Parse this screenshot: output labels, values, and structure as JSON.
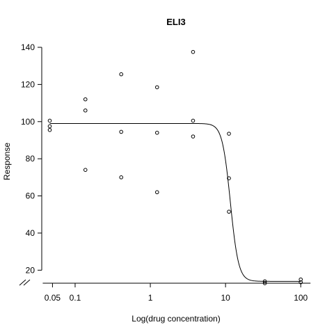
{
  "chart_data": {
    "type": "scatter",
    "title": "ELI3",
    "xlabel": "Log(drug concentration)",
    "ylabel": "Response",
    "x_scale": "log",
    "x_ticks": [
      0.05,
      0.1,
      1,
      10,
      100
    ],
    "x_tick_labels": [
      "0.05",
      "0.1",
      "1",
      "10",
      "100"
    ],
    "y_ticks": [
      20,
      40,
      60,
      80,
      100,
      120,
      140
    ],
    "y_tick_labels": [
      "20",
      "40",
      "60",
      "80",
      "100",
      "120",
      "140"
    ],
    "xlim": [
      0.036,
      140
    ],
    "ylim": [
      13,
      143
    ],
    "grid": false,
    "legend": "none",
    "axis_break": "y-axis break mark at bottom-left",
    "colors": {
      "points": "#000000",
      "curve": "#000000",
      "axes": "#000000"
    },
    "series": [
      {
        "kind": "points",
        "x": [
          0.046,
          0.046,
          0.046,
          0.137,
          0.137,
          0.137,
          0.41,
          0.41,
          0.41,
          1.23,
          1.23,
          1.23,
          3.7,
          3.7,
          3.7,
          11.1,
          11.1,
          11.1,
          33.3,
          33.3,
          100,
          100
        ],
        "y": [
          100.5,
          97.5,
          95.5,
          112,
          106,
          74,
          125.5,
          94.5,
          70,
          118.5,
          94,
          62,
          137.5,
          100.5,
          92,
          93.5,
          69.5,
          51.5,
          14,
          13,
          15,
          13.5
        ]
      },
      {
        "kind": "curve",
        "model": "four-parameter log-logistic",
        "top": 99,
        "bottom": 14,
        "ec50": 11.6,
        "hill": 8,
        "x_range": [
          0.046,
          100
        ]
      }
    ]
  }
}
